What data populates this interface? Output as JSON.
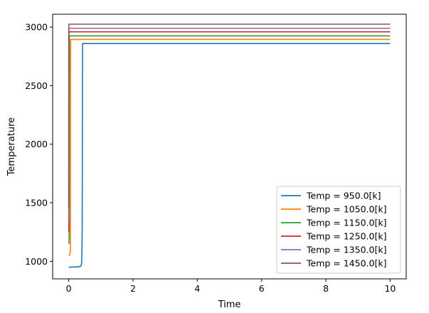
{
  "chart_data": {
    "type": "line",
    "title": "",
    "xlabel": "Time",
    "ylabel": "Temperature",
    "xlim": [
      -0.5,
      10.5
    ],
    "ylim": [
      850,
      3110
    ],
    "xticks": [
      0,
      2,
      4,
      6,
      8,
      10
    ],
    "yticks": [
      1000,
      1500,
      2000,
      2500,
      3000
    ],
    "grid": false,
    "legend_position": "lower right",
    "series": [
      {
        "name": "Temp = 950.0[k]",
        "color": "#1f77b4",
        "x": [
          0,
          0.3,
          0.38,
          0.4,
          0.41,
          0.42,
          0.43,
          10
        ],
        "y": [
          950,
          952,
          960,
          980,
          1050,
          1300,
          2860,
          2860
        ]
      },
      {
        "name": "Temp = 1050.0[k]",
        "color": "#ff7f0e",
        "x": [
          0,
          0.02,
          0.04,
          0.05,
          0.055,
          0.06,
          10
        ],
        "y": [
          1050,
          1052,
          1060,
          1100,
          1200,
          2895,
          2895
        ]
      },
      {
        "name": "Temp = 1150.0[k]",
        "color": "#2ca02c",
        "x": [
          0,
          0.005,
          0.01,
          0.015,
          0.02,
          10
        ],
        "y": [
          1150,
          1152,
          1170,
          1260,
          2925,
          2925
        ]
      },
      {
        "name": "Temp = 1250.0[k]",
        "color": "#d62728",
        "x": [
          0,
          0.003,
          0.006,
          0.008,
          10
        ],
        "y": [
          1250,
          1265,
          1330,
          2960,
          2960
        ]
      },
      {
        "name": "Temp = 1350.0[k]",
        "color": "#9467bd",
        "x": [
          0,
          0.002,
          0.004,
          10
        ],
        "y": [
          1350,
          1500,
          2990,
          2990
        ]
      },
      {
        "name": "Temp = 1450.0[k]",
        "color": "#8c564b",
        "x": [
          0,
          0.001,
          0.002,
          10
        ],
        "y": [
          1450,
          1900,
          3025,
          3025
        ]
      }
    ]
  }
}
